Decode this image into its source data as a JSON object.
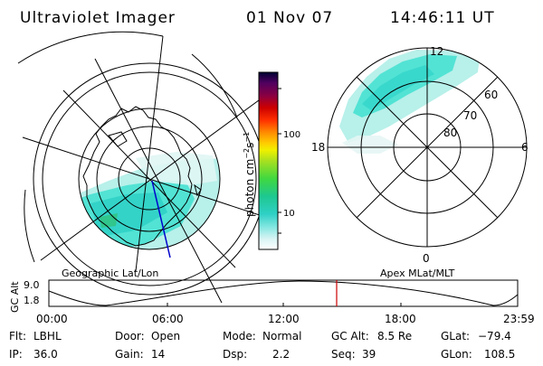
{
  "header": {
    "title": "Ultraviolet Imager",
    "date": "01 Nov 07",
    "time": "14:46:11 UT"
  },
  "left_panel": {
    "caption": "Geographic Lat/Lon"
  },
  "right_panel": {
    "caption": "Apex MLat/MLT",
    "mlt_labels": [
      "12",
      "18",
      "6",
      "0"
    ],
    "lat_labels": [
      "60",
      "70",
      "80"
    ]
  },
  "colorbar": {
    "label_main": "photon cm",
    "label_exp1": "−2",
    "label_mid": "s",
    "label_exp2": "−1",
    "ticks": [
      "100",
      "10"
    ]
  },
  "altitude_plot": {
    "ylabel": "GC Alt",
    "yticks": [
      "9.0",
      "1.8"
    ],
    "xticks": [
      "00:00",
      "06:00",
      "12:00",
      "18:00",
      "23:59"
    ],
    "marker_color": "#cc0000"
  },
  "info": {
    "row1": [
      {
        "label": "Flt:",
        "value": "LBHL"
      },
      {
        "label": "Door:",
        "value": "Open"
      },
      {
        "label": "Mode:",
        "value": "Normal"
      },
      {
        "label": "GC Alt:",
        "value": "8.5 Re"
      },
      {
        "label": "GLat:",
        "value": "−79.4"
      }
    ],
    "row2": [
      {
        "label": "IP:",
        "value": "36.0"
      },
      {
        "label": "Gain:",
        "value": "14"
      },
      {
        "label": "Dsp:",
        "value": "2.2"
      },
      {
        "label": "Seq:",
        "value": "39"
      },
      {
        "label": "GLon:",
        "value": "108.5"
      }
    ]
  },
  "colors": {
    "aurora_main": "#40e0d0",
    "aurora_light": "#b8f0ea",
    "track": "#0000cc"
  }
}
